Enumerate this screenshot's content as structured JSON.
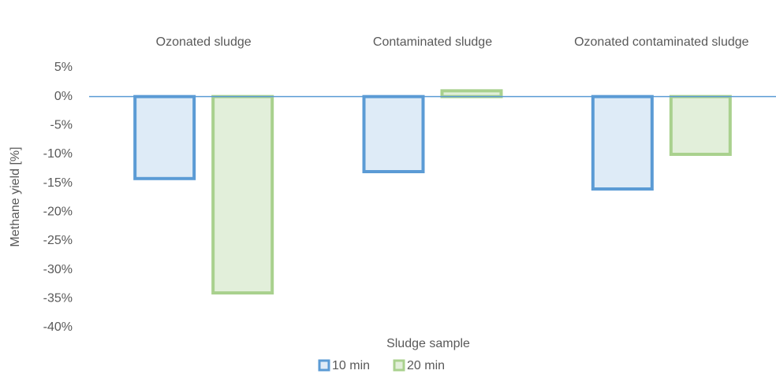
{
  "chart_data": {
    "type": "bar",
    "categories": [
      "Ozonated sludge",
      "Contaminated sludge",
      "Ozonated contaminated sludge"
    ],
    "series": [
      {
        "name": "10 min",
        "color": "#5b9bd5",
        "fill": "#deebf7",
        "values": [
          -14.2,
          -13,
          -16
        ]
      },
      {
        "name": "20 min",
        "color": "#a9d18e",
        "fill": "#e2efda",
        "values": [
          -34,
          1,
          -10
        ]
      }
    ],
    "ylabel": "Methane yield [%]",
    "xlabel": "Sludge sample",
    "ylim": [
      -40,
      5
    ],
    "yticks": [
      {
        "value": 5,
        "label": "5%"
      },
      {
        "value": 0,
        "label": "0%"
      },
      {
        "value": -5,
        "label": "-5%"
      },
      {
        "value": -10,
        "label": "-10%"
      },
      {
        "value": -15,
        "label": "-15%"
      },
      {
        "value": -20,
        "label": "-20%"
      },
      {
        "value": -25,
        "label": "-25%"
      },
      {
        "value": -30,
        "label": "-30%"
      },
      {
        "value": -35,
        "label": "-35%"
      },
      {
        "value": -40,
        "label": "-40%"
      }
    ],
    "grid": false,
    "legend": "bottom"
  }
}
